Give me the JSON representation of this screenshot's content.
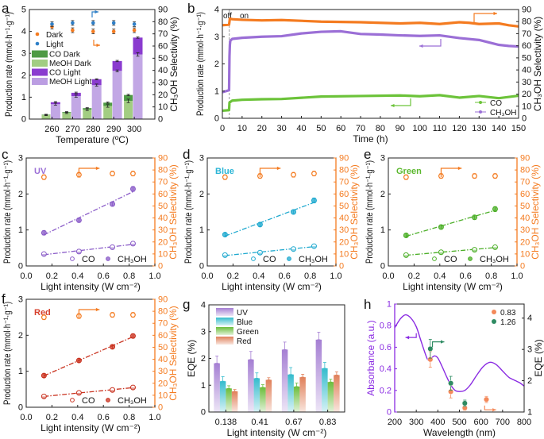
{
  "chart_data": [
    {
      "label": "a",
      "type": "bar",
      "xlabel": "Temperature (ºC)",
      "ylabel": "Production rate (mmol·h⁻¹·g⁻¹)",
      "y2label": "CH₃OH Selectivity (%)",
      "categories": [
        260,
        270,
        280,
        290,
        300
      ],
      "xticks": [
        260,
        270,
        280,
        290,
        300
      ],
      "xlim": [
        249,
        310
      ],
      "ylim": [
        0,
        5
      ],
      "y2lim": [
        0,
        90
      ],
      "yticks": [
        0,
        1,
        2,
        3,
        4,
        5
      ],
      "y2ticks": [
        0,
        10,
        20,
        30,
        40,
        50,
        60,
        70,
        80,
        90
      ],
      "bar_series": [
        {
          "name": "CO Dark",
          "values": [
            0.02,
            0.04,
            0.07,
            0.15,
            0.27
          ],
          "error": [
            0.02,
            0.02,
            0.02,
            0.03,
            0.03
          ],
          "color": "#4e9a44"
        },
        {
          "name": "MeOH Dark",
          "values": [
            0.18,
            0.28,
            0.43,
            0.6,
            0.83
          ],
          "error": [
            0.02,
            0.03,
            0.04,
            0.06,
            0.08
          ],
          "color": "#a2cd82"
        },
        {
          "name": "CO Light",
          "values": [
            0.09,
            0.15,
            0.27,
            0.45,
            0.77
          ],
          "error": [
            0.03,
            0.03,
            0.02,
            0.03,
            0.03
          ],
          "color": "#8a3bcf"
        },
        {
          "name": "MeOH Light",
          "values": [
            0.68,
            1.05,
            1.55,
            2.2,
            2.95
          ],
          "error": [
            0.05,
            0.05,
            0.05,
            0.04,
            0.08
          ],
          "color": "#bb9de2"
        }
      ],
      "selectivity_series": [
        {
          "name": "Dark",
          "values": [
            76,
            73,
            72,
            72,
            73
          ],
          "color": "#f47b20"
        },
        {
          "name": "Light",
          "values": [
            78,
            79,
            79,
            79,
            78
          ],
          "color": "#2f80c8"
        }
      ]
    },
    {
      "label": "b",
      "type": "line",
      "xlabel": "Time (h)",
      "ylabel": "Production rate (mmol·h⁻¹·g⁻¹)",
      "y2label": "CH₃OH Selectivity (%)",
      "xlim": [
        0,
        150
      ],
      "ylim": [
        0,
        4
      ],
      "y2lim": [
        0,
        90
      ],
      "xticks": [
        0,
        10,
        20,
        30,
        40,
        50,
        60,
        70,
        80,
        90,
        100,
        110,
        120,
        130,
        140,
        150
      ],
      "yticks": [
        0,
        1,
        2,
        3,
        4
      ],
      "y2ticks": [
        0,
        10,
        20,
        30,
        40,
        50,
        60,
        70,
        80,
        90
      ],
      "annotations": {
        "off": "off",
        "on": "on",
        "switch_time": 3.5
      },
      "series": [
        {
          "name": "CO",
          "axis": "left",
          "color": "#6cc33a",
          "x": [
            0,
            3.4,
            3.6,
            5,
            10,
            20,
            30,
            50,
            70,
            90,
            100,
            110,
            120,
            130,
            140,
            150
          ],
          "y": [
            0.28,
            0.3,
            0.58,
            0.65,
            0.68,
            0.7,
            0.71,
            0.8,
            0.82,
            0.84,
            0.81,
            0.85,
            0.76,
            0.82,
            0.74,
            0.83
          ]
        },
        {
          "name": "CH₃OH",
          "axis": "left",
          "color": "#9b6fd6",
          "x": [
            0,
            3.4,
            3.6,
            3.8,
            4,
            5,
            10,
            20,
            30,
            40,
            50,
            60,
            70,
            80,
            90,
            100,
            110,
            120,
            130,
            140,
            145,
            150
          ],
          "y": [
            0.96,
            1.03,
            2.27,
            2.7,
            2.85,
            2.92,
            2.96,
            3.0,
            3.02,
            3.12,
            3.18,
            3.2,
            3.1,
            3.08,
            3.05,
            3.03,
            3.05,
            2.95,
            2.88,
            2.7,
            2.66,
            2.64
          ]
        },
        {
          "name": "CH₃OH Selectivity",
          "axis": "right",
          "color": "#f47b20",
          "x": [
            0,
            3.4,
            3.8,
            5,
            10,
            20,
            30,
            50,
            70,
            90,
            100,
            110,
            120,
            125,
            130,
            140,
            145,
            150
          ],
          "y": [
            77,
            77.5,
            82.5,
            82,
            81.5,
            81,
            81.3,
            80,
            79.5,
            78.5,
            79,
            78,
            79.5,
            79,
            78,
            78.5,
            77,
            76
          ]
        }
      ]
    },
    {
      "label": "c",
      "type": "scatter",
      "tag": "UV",
      "tag_color": "#9b6fd6",
      "color": "#8a5cc8",
      "xlabel": "Light intensity (W cm⁻²)",
      "ylabel": "Production rate (mmol·h⁻¹·g⁻¹)",
      "y2label": "CH₃OH Selectivity (%)",
      "xlim": [
        0,
        1
      ],
      "ylim": [
        0,
        3
      ],
      "y2lim": [
        0,
        90
      ],
      "xticks": [
        0.0,
        0.2,
        0.4,
        0.6,
        0.8,
        1.0
      ],
      "yticks": [
        0,
        1,
        2,
        3
      ],
      "y2ticks": [
        0,
        10,
        20,
        30,
        40,
        50,
        60,
        70,
        80,
        90
      ],
      "x": [
        0.138,
        0.41,
        0.67,
        0.83
      ],
      "series": [
        {
          "name": "CO",
          "values": [
            0.33,
            0.4,
            0.52,
            0.62
          ],
          "error": [
            0.05,
            0.06,
            0.06,
            0.06
          ]
        },
        {
          "name": "CH₃OH",
          "values": [
            0.92,
            1.27,
            1.72,
            2.14
          ],
          "error": [
            0.06,
            0.06,
            0.06,
            0.07
          ]
        },
        {
          "name": "CH₃OH Selectivity",
          "axis": "right",
          "values": [
            74,
            76,
            77,
            77
          ],
          "error": [
            2,
            2,
            2,
            2
          ],
          "color": "#f47b20"
        }
      ]
    },
    {
      "label": "d",
      "type": "scatter",
      "tag": "Blue",
      "tag_color": "#2bb5d6",
      "color": "#1fa9cf",
      "xlabel": "Light intensity (W cm⁻²)",
      "ylabel": "Production rate (mmol·h⁻¹·g⁻¹)",
      "y2label": "CH₃OH Selectivity (%)",
      "xlim": [
        0,
        1
      ],
      "ylim": [
        0,
        3
      ],
      "y2lim": [
        0,
        90
      ],
      "xticks": [
        0.0,
        0.2,
        0.4,
        0.6,
        0.8,
        1.0
      ],
      "yticks": [
        0,
        1,
        2,
        3
      ],
      "y2ticks": [
        0,
        10,
        20,
        30,
        40,
        50,
        60,
        70,
        80,
        90
      ],
      "x": [
        0.138,
        0.41,
        0.67,
        0.83
      ],
      "series": [
        {
          "name": "CO",
          "values": [
            0.3,
            0.37,
            0.47,
            0.55
          ],
          "error": [
            0.04,
            0.05,
            0.05,
            0.05
          ]
        },
        {
          "name": "CH₃OH",
          "values": [
            0.87,
            1.15,
            1.5,
            1.82
          ],
          "error": [
            0.05,
            0.05,
            0.06,
            0.07
          ]
        },
        {
          "name": "CH₃OH Selectivity",
          "axis": "right",
          "values": [
            74,
            75,
            76,
            77
          ],
          "error": [
            2,
            2,
            2,
            2
          ],
          "color": "#f47b20"
        }
      ]
    },
    {
      "label": "e",
      "type": "scatter",
      "tag": "Green",
      "tag_color": "#5cb82e",
      "color": "#4caf28",
      "xlabel": "Light intensity (W cm⁻²)",
      "ylabel": "Production rate (mmol·h⁻¹·g⁻¹)",
      "y2label": "CH₃OH Selectivity (%)",
      "xlim": [
        0,
        1
      ],
      "ylim": [
        0,
        3
      ],
      "y2lim": [
        0,
        90
      ],
      "xticks": [
        0.0,
        0.2,
        0.4,
        0.6,
        0.8,
        1.0
      ],
      "yticks": [
        0,
        1,
        2,
        3
      ],
      "y2ticks": [
        0,
        10,
        20,
        30,
        40,
        50,
        60,
        70,
        80,
        90
      ],
      "x": [
        0.138,
        0.41,
        0.67,
        0.83
      ],
      "series": [
        {
          "name": "CO",
          "values": [
            0.3,
            0.38,
            0.45,
            0.52
          ],
          "error": [
            0.04,
            0.05,
            0.05,
            0.05
          ]
        },
        {
          "name": "CH₃OH",
          "values": [
            0.85,
            1.08,
            1.35,
            1.58
          ],
          "error": [
            0.05,
            0.06,
            0.06,
            0.07
          ]
        },
        {
          "name": "CH₃OH Selectivity",
          "axis": "right",
          "values": [
            74,
            75,
            75,
            75
          ],
          "error": [
            2,
            2,
            2,
            2
          ],
          "color": "#f47b20"
        }
      ]
    },
    {
      "label": "f",
      "type": "scatter",
      "tag": "Red",
      "tag_color": "#d6402c",
      "color": "#c9321f",
      "xlabel": "Light intensity (W cm⁻²)",
      "ylabel": "Production rate (mmol·h⁻¹·g⁻¹)",
      "y2label": "CH₃OH Selectivity (%)",
      "xlim": [
        0,
        1
      ],
      "ylim": [
        0,
        3
      ],
      "y2lim": [
        0,
        90
      ],
      "xticks": [
        0.0,
        0.2,
        0.4,
        0.6,
        0.8,
        1.0
      ],
      "yticks": [
        0,
        1,
        2,
        3
      ],
      "y2ticks": [
        0,
        10,
        20,
        30,
        40,
        50,
        60,
        70,
        80,
        90
      ],
      "x": [
        0.138,
        0.41,
        0.67,
        0.83
      ],
      "series": [
        {
          "name": "CO",
          "values": [
            0.3,
            0.4,
            0.48,
            0.55
          ],
          "error": [
            0.04,
            0.05,
            0.05,
            0.06
          ]
        },
        {
          "name": "CH₃OH",
          "values": [
            0.88,
            1.3,
            1.68,
            1.98
          ],
          "error": [
            0.05,
            0.05,
            0.06,
            0.06
          ]
        },
        {
          "name": "CH₃OH Selectivity",
          "axis": "right",
          "values": [
            75,
            76,
            77,
            77
          ],
          "error": [
            2,
            2,
            2,
            2
          ],
          "color": "#f47b20"
        }
      ]
    },
    {
      "label": "g",
      "type": "bar",
      "xlabel": "Light intensity (W cm⁻²)",
      "ylabel": "EQE (%)",
      "categories": [
        "0.138",
        "0.41",
        "0.67",
        "0.83"
      ],
      "ylim": [
        0,
        4
      ],
      "yticks": [
        0,
        1,
        2,
        3,
        4
      ],
      "series": [
        {
          "name": "UV",
          "values": [
            1.82,
            1.96,
            2.33,
            2.7
          ],
          "error": [
            0.27,
            0.3,
            0.28,
            0.28
          ],
          "color": "#a57fd3"
        },
        {
          "name": "Blue",
          "values": [
            1.15,
            1.26,
            1.4,
            1.63
          ],
          "error": [
            0.17,
            0.2,
            0.26,
            0.22
          ],
          "color": "#35bccd"
        },
        {
          "name": "Green",
          "values": [
            0.88,
            0.92,
            0.95,
            1.12
          ],
          "error": [
            0.1,
            0.1,
            0.13,
            0.1
          ],
          "color": "#6cbd3c"
        },
        {
          "name": "Red",
          "values": [
            0.77,
            1.2,
            1.3,
            1.38
          ],
          "error": [
            0.07,
            0.08,
            0.11,
            0.12
          ],
          "color": "#e0805a"
        }
      ]
    },
    {
      "label": "h",
      "type": "line",
      "xlabel": "Wavelength (nm)",
      "ylabel": "Absorbance (a.u.)",
      "y2label": "EQE (%)",
      "xlim": [
        200,
        800
      ],
      "ylim": [
        0,
        1
      ],
      "y2lim": [
        1,
        4.45
      ],
      "xticks": [
        200,
        300,
        400,
        500,
        600,
        700,
        800
      ],
      "yticks": [
        0.0,
        0.2,
        0.4,
        0.6,
        0.8,
        1.0
      ],
      "y2ticks": [
        1,
        2,
        3,
        4
      ],
      "absorbance": {
        "color": "#8a2be2",
        "x": [
          200,
          225,
          250,
          275,
          300,
          320,
          340,
          355,
          370,
          385,
          400,
          420,
          440,
          460,
          480,
          500,
          525,
          550,
          580,
          610,
          640,
          670,
          700,
          730,
          760,
          780,
          800
        ],
        "y": [
          0.78,
          0.86,
          0.9,
          0.87,
          0.79,
          0.67,
          0.55,
          0.48,
          0.5,
          0.52,
          0.5,
          0.42,
          0.33,
          0.25,
          0.2,
          0.19,
          0.2,
          0.25,
          0.34,
          0.42,
          0.46,
          0.44,
          0.38,
          0.32,
          0.29,
          0.27,
          0.24
        ]
      },
      "eqe_series": [
        {
          "name": "0.83",
          "color": "#f4895a",
          "x": [
            365,
            460,
            525,
            625
          ],
          "y": [
            2.68,
            1.65,
            1.13,
            1.4
          ],
          "error": [
            0.25,
            0.2,
            0.08,
            0.1
          ]
        },
        {
          "name": "1.26",
          "color": "#2e8b62",
          "x": [
            365,
            460,
            525
          ],
          "y": [
            3.02,
            1.92,
            1.28
          ],
          "error": [
            0.3,
            0.22,
            0.1
          ]
        }
      ]
    }
  ]
}
